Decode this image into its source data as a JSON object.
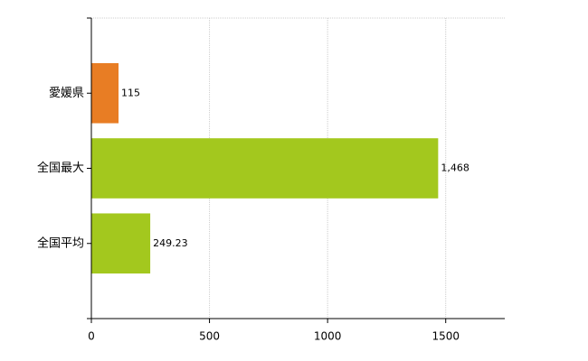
{
  "chart_data": {
    "type": "barh",
    "categories": [
      "愛媛県",
      "全国最大",
      "全国平均"
    ],
    "values": [
      115,
      1468,
      249.23
    ],
    "value_labels": [
      "115",
      "1,468",
      "249.23"
    ],
    "colors": [
      "#e87d24",
      "#a3c81e",
      "#a3c81e"
    ],
    "xlim": [
      0,
      1750
    ],
    "xticks": [
      0,
      500,
      1000,
      1500
    ],
    "grid": true
  }
}
